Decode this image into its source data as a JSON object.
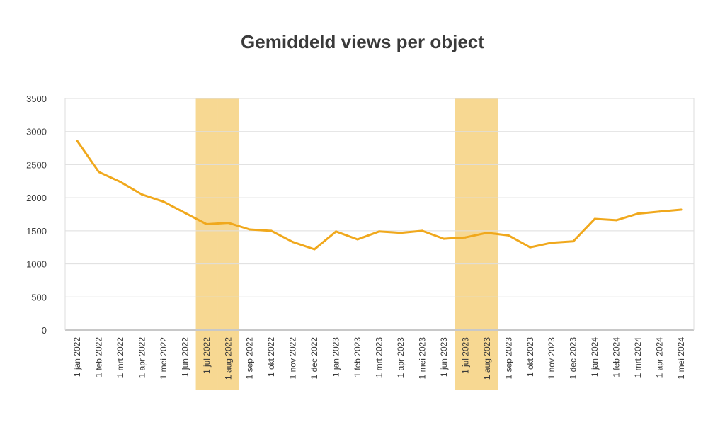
{
  "chart_data": {
    "type": "line",
    "title": "Gemiddeld views per object",
    "xlabel": "",
    "ylabel": "",
    "ylim": [
      0,
      3500
    ],
    "yticks": [
      0,
      500,
      1000,
      1500,
      2000,
      2500,
      3000,
      3500
    ],
    "grid": true,
    "legend": "none",
    "line_color": "#F0A81C",
    "highlight_color": "#F7D892",
    "categories": [
      "1 jan 2022",
      "1 feb 2022",
      "1 mrt 2022",
      "1 apr 2022",
      "1 mei 2022",
      "1 jun 2022",
      "1 jul 2022",
      "1 aug 2022",
      "1 sep 2022",
      "1 okt 2022",
      "1 nov 2022",
      "1 dec 2022",
      "1 jan 2023",
      "1 feb 2023",
      "1 mrt 2023",
      "1 apr 2023",
      "1 mei 2023",
      "1 jun 2023",
      "1 jul 2023",
      "1 aug 2023",
      "1 sep 2023",
      "1 okt 2023",
      "1 nov 2023",
      "1 dec 2023",
      "1 jan 2024",
      "1 feb 2024",
      "1 mrt 2024",
      "1 apr 2024",
      "1 mei 2024"
    ],
    "highlighted_categories": [
      "1 jul 2022",
      "1 aug 2022",
      "1 jul 2023",
      "1 aug 2023"
    ],
    "series": [
      {
        "values": [
          2860,
          2390,
          2240,
          2050,
          1940,
          1770,
          1600,
          1620,
          1520,
          1500,
          1330,
          1220,
          1490,
          1370,
          1490,
          1470,
          1500,
          1380,
          1400,
          1470,
          1430,
          1250,
          1320,
          1340,
          1680,
          1660,
          1760,
          1790,
          1820
        ]
      }
    ]
  }
}
